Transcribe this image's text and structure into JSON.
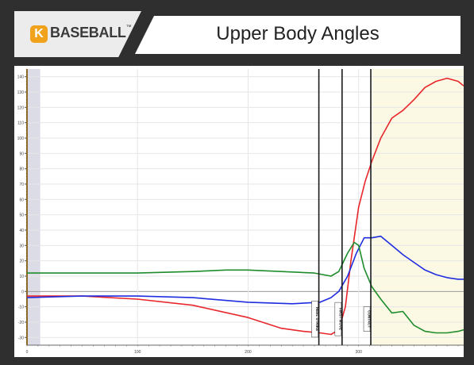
{
  "header": {
    "logo_letter": "K",
    "logo_text": "BASEBALL",
    "logo_tm": "™",
    "title": "Upper Body Angles"
  },
  "colors": {
    "red_series": "#e8262a",
    "blue_series": "#1f2de0",
    "green_series": "#1e8c2b",
    "highlight_band": "#fbf9e4",
    "left_band": "#dcdce6",
    "event_line": "#1a1a1a"
  },
  "chart_data": {
    "type": "line",
    "xlim": [
      0,
      395
    ],
    "ylim": [
      -35,
      145
    ],
    "x_ticks": [
      0,
      100,
      200,
      300
    ],
    "x_tick_labels": [
      "0",
      "100",
      "200",
      "300"
    ],
    "y_ticks": [
      -30,
      -20,
      -10,
      0,
      10,
      20,
      30,
      40,
      50,
      60,
      70,
      80,
      90,
      100,
      110,
      120,
      130,
      140
    ],
    "y_tick_labels": [
      "-30",
      "-20",
      "-10",
      "0",
      "10",
      "20",
      "30",
      "40",
      "50",
      "60",
      "70",
      "80",
      "90",
      "100",
      "110",
      "120",
      "130",
      "140"
    ],
    "grid": true,
    "shaded_regions": [
      {
        "x_start": 0,
        "x_end": 12,
        "kind": "left"
      },
      {
        "x_start": 312,
        "x_end": 395,
        "kind": "highlight"
      }
    ],
    "events": [
      {
        "x": 264,
        "label": "HEEL STRIKE"
      },
      {
        "x": 285,
        "label": "FIRST MOVE"
      },
      {
        "x": 311,
        "label": "CONTACT"
      }
    ],
    "series": [
      {
        "color_key": "red_series",
        "x": [
          0,
          50,
          100,
          150,
          200,
          230,
          250,
          265,
          275,
          282,
          288,
          293,
          300,
          306,
          312,
          320,
          330,
          340,
          350,
          360,
          370,
          380,
          390,
          395
        ],
        "y": [
          -3,
          -3,
          -5,
          -9,
          -17,
          -24,
          -26,
          -27,
          -28,
          -25,
          -10,
          20,
          55,
          72,
          85,
          100,
          113,
          118,
          125,
          133,
          137,
          139,
          137,
          134
        ]
      },
      {
        "color_key": "blue_series",
        "x": [
          0,
          50,
          100,
          150,
          200,
          240,
          265,
          275,
          282,
          290,
          298,
          305,
          312,
          320,
          330,
          340,
          350,
          360,
          370,
          380,
          390,
          395
        ],
        "y": [
          -4,
          -3,
          -3,
          -4,
          -7,
          -8,
          -7,
          -4,
          0,
          10,
          25,
          35,
          35,
          36,
          30,
          24,
          19,
          14,
          11,
          9,
          8,
          8
        ],
        "label_positions": []
      },
      {
        "color_key": "green_series",
        "x": [
          0,
          50,
          100,
          150,
          180,
          200,
          230,
          260,
          275,
          282,
          290,
          296,
          300,
          305,
          312,
          320,
          330,
          340,
          350,
          360,
          370,
          380,
          390,
          395
        ],
        "y": [
          12,
          12,
          12,
          13,
          14,
          14,
          13,
          12,
          10,
          13,
          25,
          32,
          30,
          15,
          3,
          -5,
          -14,
          -13,
          -22,
          -26,
          -27,
          -27,
          -26,
          -25
        ]
      }
    ]
  }
}
